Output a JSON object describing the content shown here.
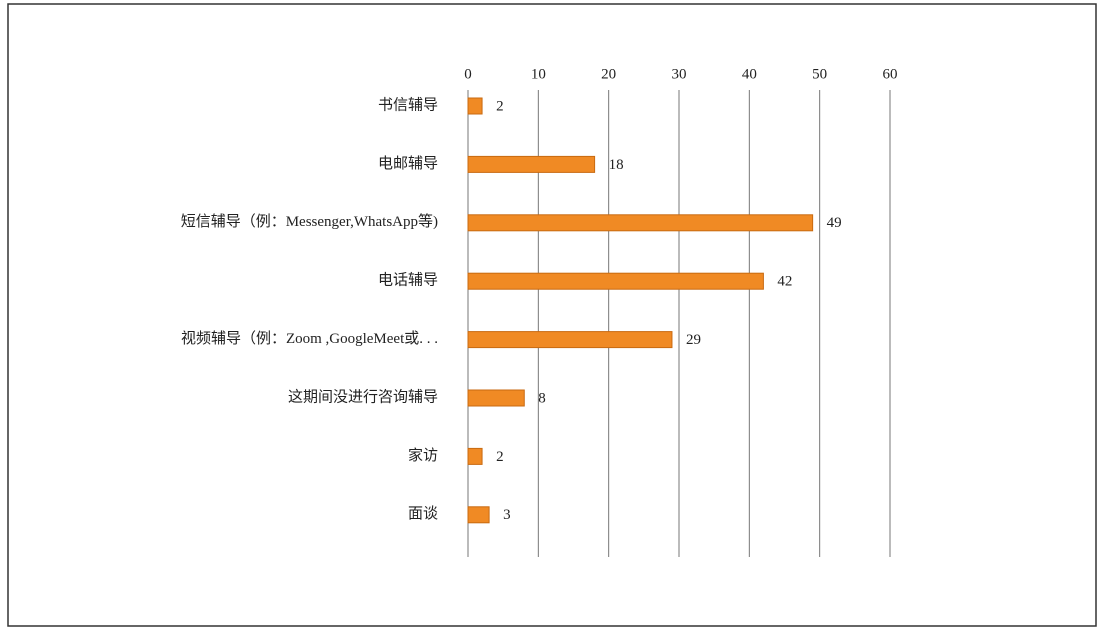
{
  "chart_data": {
    "type": "bar",
    "orientation": "horizontal",
    "categories": [
      "书信辅导",
      "电邮辅导",
      "短信辅导（例：Messenger,WhatsApp等)",
      "电话辅导",
      "视频辅导（例：Zoom ,GoogleMeet或. . .",
      "这期间没进行咨询辅导",
      "家访",
      "面谈"
    ],
    "values": [
      2,
      18,
      49,
      42,
      29,
      8,
      2,
      3
    ],
    "color": "#f08a24",
    "xlim": [
      0,
      60
    ],
    "xticks": [
      0,
      10,
      20,
      30,
      40,
      50,
      60
    ],
    "grid": true
  }
}
